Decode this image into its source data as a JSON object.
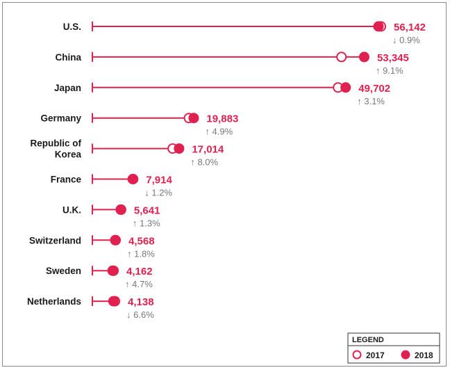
{
  "colors": {
    "accent": "#e0204f",
    "text": "#1a1a1a",
    "change_text": "#777777",
    "frame": "#8a8a8a"
  },
  "chart_data": {
    "type": "dot-plot",
    "title": "",
    "xlabel": "",
    "ylabel": "",
    "xlim": [
      0,
      57000
    ],
    "grid": false,
    "legend_placement": "bottom-right",
    "legend": {
      "title": "LEGEND",
      "entries": [
        {
          "label": "2017",
          "marker": "hollow-circle"
        },
        {
          "label": "2018",
          "marker": "filled-circle"
        }
      ]
    },
    "categories": [
      "U.S.",
      "China",
      "Japan",
      "Germany",
      "Republic of Korea",
      "France",
      "U.K.",
      "Switzerland",
      "Sweden",
      "Netherlands"
    ],
    "rows": [
      {
        "label": [
          "U.S."
        ],
        "v2017": 56624,
        "v2018": 56142,
        "value_text": "56,142",
        "change": "0.9%",
        "direction": "down"
      },
      {
        "label": [
          "China"
        ],
        "v2017": 48882,
        "v2018": 53345,
        "value_text": "53,345",
        "change": "9.1%",
        "direction": "up"
      },
      {
        "label": [
          "Japan"
        ],
        "v2017": 48205,
        "v2018": 49702,
        "value_text": "49,702",
        "change": "3.1%",
        "direction": "up"
      },
      {
        "label": [
          "Germany"
        ],
        "v2017": 18951,
        "v2018": 19883,
        "value_text": "19,883",
        "change": "4.9%",
        "direction": "up"
      },
      {
        "label": [
          "Republic of",
          "Korea"
        ],
        "v2017": 15754,
        "v2018": 17014,
        "value_text": "17,014",
        "change": "8.0%",
        "direction": "up"
      },
      {
        "label": [
          "France"
        ],
        "v2017": 8012,
        "v2018": 7914,
        "value_text": "7,914",
        "change": "1.2%",
        "direction": "down"
      },
      {
        "label": [
          "U.K."
        ],
        "v2017": 5568,
        "v2018": 5641,
        "value_text": "5,641",
        "change": "1.3%",
        "direction": "up"
      },
      {
        "label": [
          "Switzerland"
        ],
        "v2017": 4487,
        "v2018": 4568,
        "value_text": "4,568",
        "change": "1.8%",
        "direction": "up"
      },
      {
        "label": [
          "Sweden"
        ],
        "v2017": 3975,
        "v2018": 4162,
        "value_text": "4,162",
        "change": "4.7%",
        "direction": "up"
      },
      {
        "label": [
          "Netherlands"
        ],
        "v2017": 4431,
        "v2018": 4138,
        "value_text": "4,138",
        "change": "6.6%",
        "direction": "down"
      }
    ]
  }
}
